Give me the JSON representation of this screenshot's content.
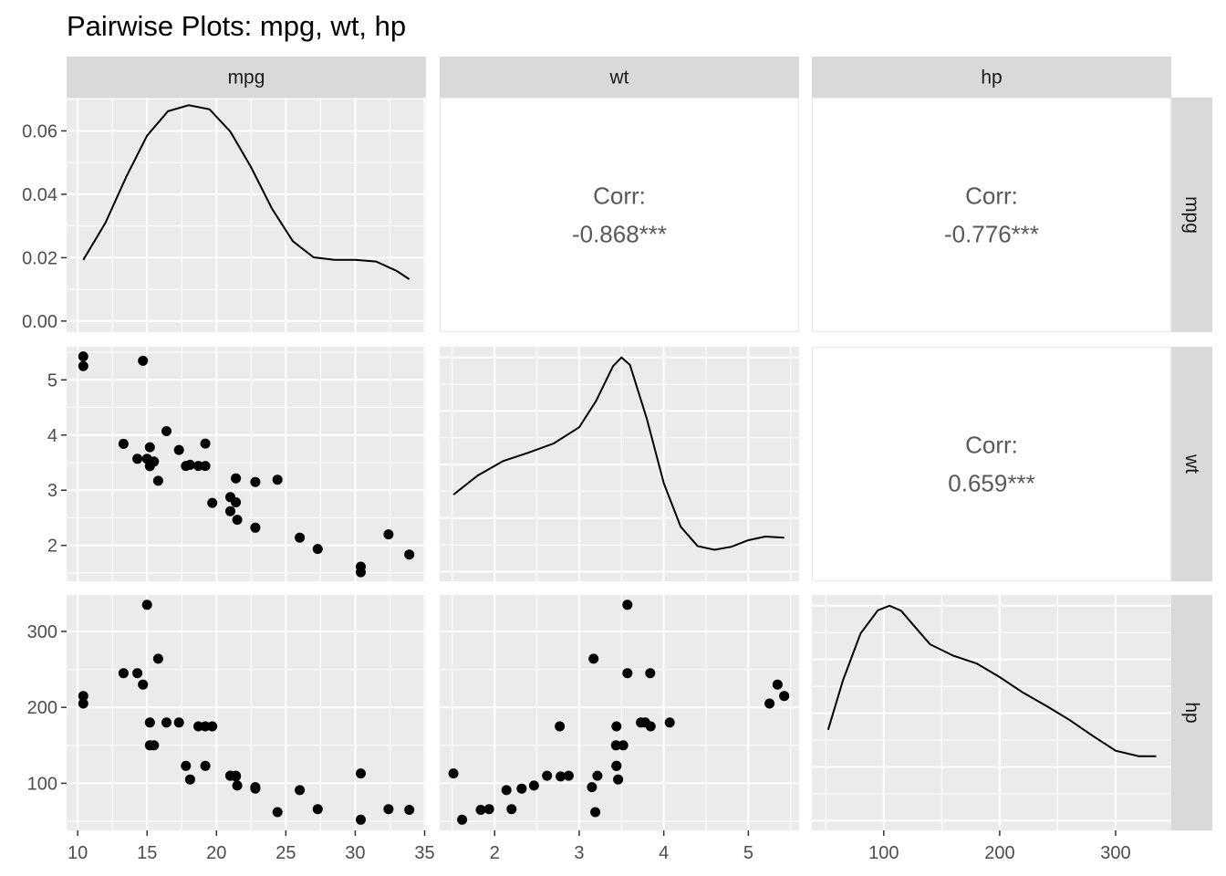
{
  "chart_data": {
    "type": "scatter",
    "title": "Pairwise Plots: mpg, wt, hp",
    "variables": [
      "mpg",
      "wt",
      "hp"
    ],
    "axes": {
      "mpg": {
        "lim": [
          9.2,
          35.1
        ],
        "ticks": [
          10,
          15,
          20,
          25,
          30,
          35
        ],
        "tick_labels": [
          "10",
          "15",
          "20",
          "25",
          "30",
          "35"
        ]
      },
      "wt": {
        "lim": [
          1.35,
          5.6
        ],
        "ticks": [
          2,
          3,
          4,
          5
        ],
        "tick_labels": [
          "2",
          "3",
          "4",
          "5"
        ]
      },
      "hp": {
        "lim": [
          38,
          348
        ],
        "ticks": [
          100,
          200,
          300
        ],
        "tick_labels": [
          "100",
          "200",
          "300"
        ]
      }
    },
    "density_axis": {
      "lim": [
        -0.0035,
        0.0705
      ],
      "ticks": [
        0,
        0.02,
        0.04,
        0.06
      ],
      "tick_labels": [
        "0.00",
        "0.02",
        "0.04",
        "0.06"
      ]
    },
    "observations": {
      "mpg": [
        21,
        21,
        22.8,
        21.4,
        18.7,
        18.1,
        14.3,
        24.4,
        22.8,
        19.2,
        17.8,
        16.4,
        17.3,
        15.2,
        10.4,
        10.4,
        14.7,
        32.4,
        30.4,
        33.9,
        21.5,
        15.5,
        15.2,
        13.3,
        19.2,
        27.3,
        26,
        30.4,
        15.8,
        19.7,
        15,
        21.4
      ],
      "wt": [
        2.62,
        2.875,
        2.32,
        3.215,
        3.44,
        3.46,
        3.57,
        3.19,
        3.15,
        3.44,
        3.44,
        4.07,
        3.73,
        3.78,
        5.25,
        5.424,
        5.345,
        2.2,
        1.615,
        1.835,
        2.465,
        3.52,
        3.435,
        3.84,
        3.845,
        1.935,
        2.14,
        1.513,
        3.17,
        2.77,
        3.57,
        2.78
      ],
      "hp": [
        110,
        110,
        93,
        110,
        175,
        105,
        245,
        62,
        95,
        123,
        123,
        180,
        180,
        180,
        205,
        215,
        230,
        66,
        52,
        65,
        97,
        150,
        150,
        245,
        175,
        66,
        91,
        113,
        264,
        175,
        335,
        109
      ]
    },
    "densities": {
      "mpg": {
        "x": [
          10.4,
          12,
          13.5,
          15,
          16.5,
          18,
          19.5,
          21,
          22.5,
          24,
          25.5,
          27,
          28.5,
          30,
          31.5,
          33,
          33.9
        ],
        "y": [
          0.0193,
          0.031,
          0.0455,
          0.0585,
          0.0662,
          0.0681,
          0.0668,
          0.0598,
          0.0485,
          0.0355,
          0.0252,
          0.0201,
          0.0193,
          0.0193,
          0.0188,
          0.0158,
          0.0132
        ]
      },
      "wt": {
        "x": [
          1.513,
          1.8,
          2.1,
          2.4,
          2.7,
          3.0,
          3.2,
          3.4,
          3.5,
          3.6,
          3.8,
          4.0,
          4.2,
          4.4,
          4.6,
          4.8,
          5.0,
          5.2,
          5.424
        ],
        "y": [
          0.257,
          0.321,
          0.369,
          0.397,
          0.428,
          0.482,
          0.57,
          0.686,
          0.715,
          0.69,
          0.51,
          0.295,
          0.15,
          0.085,
          0.073,
          0.083,
          0.105,
          0.117,
          0.113
        ]
      },
      "hp": {
        "x": [
          52,
          65,
          80,
          95,
          105,
          115,
          125,
          140,
          160,
          180,
          200,
          220,
          240,
          260,
          280,
          300,
          320,
          335
        ],
        "y": [
          0.002,
          0.0031,
          0.00412,
          0.00463,
          0.00473,
          0.00462,
          0.00432,
          0.00388,
          0.00363,
          0.00346,
          0.00316,
          0.00282,
          0.00253,
          0.00222,
          0.00187,
          0.00154,
          0.00142,
          0.00142
        ]
      }
    },
    "correlations": [
      {
        "row": "mpg",
        "col": "wt",
        "label": "Corr:",
        "value": "-0.868***"
      },
      {
        "row": "mpg",
        "col": "hp",
        "label": "Corr:",
        "value": "-0.776***"
      },
      {
        "row": "wt",
        "col": "hp",
        "label": "Corr:",
        "value": "0.659***"
      }
    ],
    "grid": true,
    "colors": {
      "panel_bg": "#ebebeb",
      "strip_bg": "#d9d9d9",
      "grid": "#ffffff",
      "points": "#000000",
      "corr_text": "#595959"
    }
  }
}
